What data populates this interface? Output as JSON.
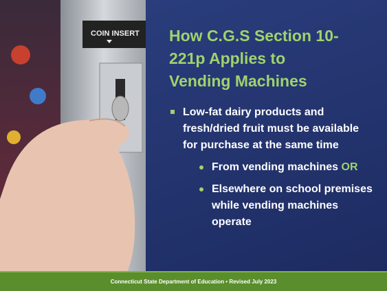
{
  "slide": {
    "title": "How C.G.S Section 10-221p Applies to Vending Machines",
    "bullets": [
      {
        "text": "Low-fat dairy products and fresh/dried fruit must be available for purchase at the same time",
        "subbullets": [
          {
            "text": "From vending machines",
            "emphasis": "OR"
          },
          {
            "text": "Elsewhere on school premises while vending machines operate"
          }
        ]
      }
    ],
    "photo_text": "COIN INSERT"
  },
  "footer": {
    "text": "Connecticut State Department of Education • Revised July 2023"
  }
}
